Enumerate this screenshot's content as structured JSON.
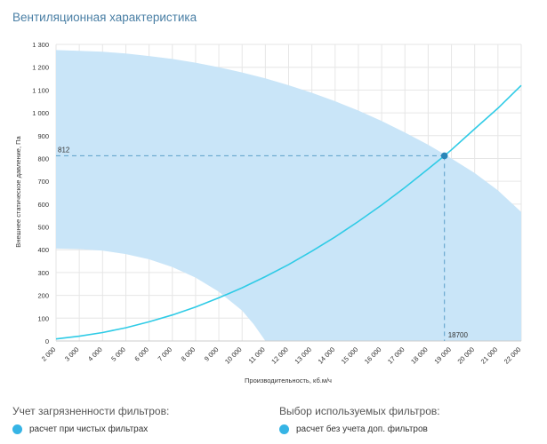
{
  "title": "Вентиляционная характеристика",
  "chart_data": {
    "type": "line",
    "xlabel": "Производительность, кб.м/ч",
    "ylabel": "Внешнее статическое давление, Па",
    "xlim": [
      2000,
      22000
    ],
    "ylim": [
      0,
      1300
    ],
    "x_ticks": [
      2000,
      3000,
      4000,
      5000,
      6000,
      7000,
      8000,
      9000,
      10000,
      11000,
      12000,
      13000,
      14000,
      15000,
      16000,
      17000,
      18000,
      19000,
      20000,
      21000,
      22000
    ],
    "x_tick_labels": [
      "2 000",
      "3 000",
      "4 000",
      "5 000",
      "6 000",
      "7 000",
      "8 000",
      "9 000",
      "10 000",
      "11 000",
      "12 000",
      "13 000",
      "14 000",
      "15 000",
      "16 000",
      "17 000",
      "18 000",
      "19 000",
      "20 000",
      "21 000",
      "22 000"
    ],
    "y_ticks": [
      0,
      100,
      200,
      300,
      400,
      500,
      600,
      700,
      800,
      900,
      1000,
      1100,
      1200,
      1300
    ],
    "y_tick_labels": [
      "0",
      "100",
      "200",
      "300",
      "400",
      "500",
      "600",
      "700",
      "800",
      "900",
      "1 000",
      "1 100",
      "1 200",
      "1 300"
    ],
    "grid": true,
    "series": [
      {
        "name": "system-curve",
        "color": "#2fcbe6",
        "x": [
          2000,
          3000,
          4000,
          5000,
          6000,
          7000,
          8000,
          9000,
          10000,
          11000,
          12000,
          13000,
          14000,
          15000,
          16000,
          17000,
          18000,
          18700,
          19000,
          20000,
          21000,
          22000
        ],
        "values": [
          9,
          21,
          37,
          58,
          84,
          114,
          149,
          189,
          233,
          282,
          335,
          394,
          456,
          524,
          596,
          673,
          754,
          812,
          838,
          930,
          1020,
          1120
        ]
      }
    ],
    "operating_region": {
      "color": "#c9e5f8",
      "upper": {
        "x": [
          2000,
          3000,
          4000,
          5000,
          6000,
          7000,
          8000,
          9000,
          10000,
          11000,
          12000,
          13000,
          14000,
          15000,
          16000,
          17000,
          18000,
          19000,
          20000,
          21000,
          22000
        ],
        "values": [
          1275,
          1272,
          1268,
          1260,
          1249,
          1236,
          1220,
          1200,
          1177,
          1151,
          1121,
          1088,
          1051,
          1010,
          964,
          914,
          860,
          800,
          736,
          660,
          565
        ]
      },
      "lower": {
        "x": [
          2000,
          3000,
          4000,
          5000,
          6000,
          7000,
          8000,
          9000,
          10000,
          10500,
          11000
        ],
        "values": [
          405,
          403,
          396,
          381,
          358,
          324,
          278,
          216,
          133,
          73,
          0
        ]
      }
    },
    "operating_point": {
      "x": 18700,
      "y": 812,
      "x_label": "18700",
      "y_label": "812",
      "color": "#2a86b8"
    }
  },
  "filters_pollution": {
    "heading": "Учет загрязненности фильтров:",
    "option": "расчет при чистых фильтрах"
  },
  "filters_selection": {
    "heading": "Выбор используемых фильтров:",
    "option": "расчет без учета доп. фильтров"
  }
}
